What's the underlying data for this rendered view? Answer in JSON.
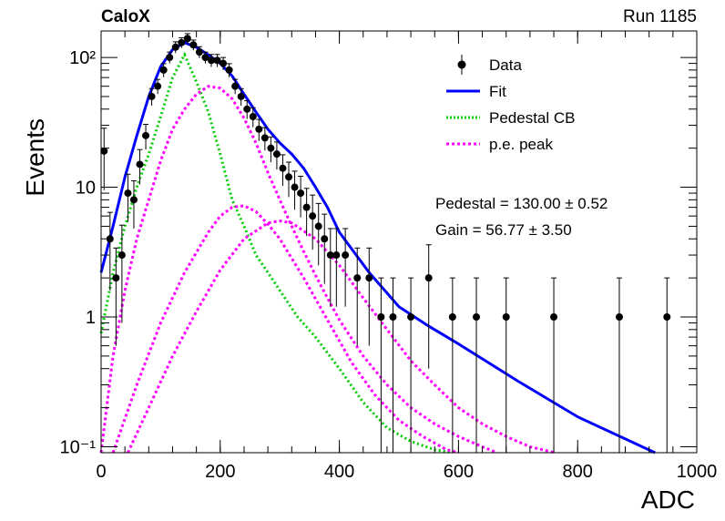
{
  "header": {
    "experiment": "CaloX",
    "run": "Run 1185"
  },
  "colors": {
    "data": "#000000",
    "fit": "#0000ff",
    "pedestal": "#00cc00",
    "pe_peak": "#ff00ff",
    "frame": "#000000"
  },
  "chart_data": {
    "type": "scatter",
    "title": "",
    "xlabel": "ADC",
    "ylabel": "Events",
    "xlim": [
      0,
      1000
    ],
    "ylim": [
      0.09,
      160
    ],
    "yscale": "log",
    "grid": false,
    "legend_position": "top-right",
    "xticks": [
      0,
      200,
      400,
      600,
      800,
      1000
    ],
    "xtick_labels": [
      "0",
      "200",
      "400",
      "600",
      "800",
      "1000"
    ],
    "yticks": [
      0.1,
      1,
      10,
      100
    ],
    "ytick_labels": [
      "10⁻¹",
      "1",
      "10",
      "10²"
    ],
    "legend": [
      "Data",
      "Fit",
      "Pedestal CB",
      "p.e. peak"
    ],
    "annotations": [
      "Pedestal = 130.00 ± 0.52",
      "Gain = 56.77 ± 3.50"
    ],
    "series": [
      {
        "name": "Data",
        "style": "markers",
        "x": [
          5,
          15,
          25,
          35,
          45,
          55,
          65,
          75,
          85,
          95,
          105,
          115,
          125,
          135,
          145,
          155,
          165,
          175,
          185,
          195,
          205,
          215,
          225,
          235,
          245,
          255,
          265,
          275,
          285,
          295,
          305,
          315,
          325,
          335,
          345,
          355,
          365,
          375,
          385,
          395,
          410,
          430,
          450,
          470,
          490,
          520,
          550,
          590,
          630,
          680,
          760,
          870,
          950
        ],
        "y": [
          19,
          4,
          2,
          3,
          9,
          8,
          15,
          25,
          50,
          60,
          80,
          100,
          120,
          130,
          140,
          125,
          110,
          100,
          95,
          95,
          90,
          80,
          60,
          50,
          40,
          35,
          28,
          24,
          20,
          18,
          14,
          12,
          10,
          9,
          7,
          6,
          5,
          4,
          3,
          3,
          3,
          2,
          2,
          1,
          1,
          1,
          2,
          1,
          1,
          1,
          1,
          1,
          1
        ],
        "err": [
          0.5,
          0.6,
          0.7,
          0.7,
          0.4,
          0.4,
          0.3,
          0.22,
          0.15,
          0.13,
          0.12,
          0.1,
          0.1,
          0.09,
          0.09,
          0.09,
          0.1,
          0.1,
          0.11,
          0.11,
          0.11,
          0.12,
          0.13,
          0.15,
          0.16,
          0.17,
          0.19,
          0.2,
          0.22,
          0.24,
          0.27,
          0.3,
          0.33,
          0.35,
          0.4,
          0.45,
          0.5,
          0.55,
          0.6,
          0.6,
          0.6,
          0.7,
          0.7,
          1.0,
          1.0,
          1.0,
          0.8,
          1.0,
          1.0,
          1.0,
          1.0,
          1.0,
          1.0
        ]
      },
      {
        "name": "Fit",
        "style": "line",
        "x": [
          0,
          20,
          40,
          60,
          80,
          100,
          120,
          140,
          160,
          180,
          200,
          220,
          240,
          260,
          280,
          300,
          320,
          340,
          360,
          380,
          400,
          450,
          500,
          550,
          600,
          700,
          800,
          930
        ],
        "y": [
          2.2,
          5,
          12,
          25,
          50,
          85,
          115,
          130,
          120,
          105,
          90,
          72,
          52,
          38,
          28,
          22,
          18,
          14,
          10,
          7,
          4.5,
          2.2,
          1.2,
          0.85,
          0.62,
          0.32,
          0.17,
          0.09
        ]
      },
      {
        "name": "Pedestal CB",
        "style": "dotted",
        "x": [
          0,
          20,
          40,
          60,
          80,
          100,
          120,
          140,
          160,
          180,
          200,
          220,
          240,
          260,
          280,
          300,
          330,
          360,
          400,
          440,
          480,
          520,
          560,
          590
        ],
        "y": [
          0.75,
          2.2,
          5,
          10,
          18,
          35,
          70,
          105,
          65,
          38,
          18,
          8,
          5,
          3,
          2.2,
          1.6,
          1,
          0.7,
          0.4,
          0.22,
          0.14,
          0.11,
          0.095,
          0.09
        ]
      },
      {
        "name": "p.e. peak 1",
        "style": "dotted",
        "x": [
          0,
          20,
          40,
          60,
          80,
          100,
          120,
          140,
          160,
          180,
          200,
          220,
          240,
          260,
          280,
          300,
          320,
          340,
          360,
          380,
          400,
          440,
          480,
          520,
          560,
          600,
          640,
          665
        ],
        "y": [
          0.08,
          0.5,
          1.6,
          4,
          8,
          16,
          28,
          40,
          52,
          60,
          58,
          48,
          34,
          22,
          13,
          8,
          5,
          3.2,
          2.1,
          1.4,
          0.95,
          0.5,
          0.3,
          0.2,
          0.15,
          0.12,
          0.1,
          0.09
        ]
      },
      {
        "name": "p.e. peak 2",
        "style": "dotted",
        "x": [
          20,
          60,
          100,
          140,
          180,
          200,
          220,
          240,
          260,
          280,
          300,
          340,
          380,
          420,
          460,
          500,
          540,
          580,
          600
        ],
        "y": [
          0.09,
          0.3,
          0.9,
          2.2,
          4.5,
          6,
          7,
          7.2,
          6.5,
          5.2,
          4,
          2,
          0.95,
          0.45,
          0.25,
          0.16,
          0.12,
          0.095,
          0.09
        ]
      },
      {
        "name": "p.e. peak 3",
        "style": "dotted",
        "x": [
          45,
          80,
          120,
          160,
          200,
          240,
          280,
          300,
          320,
          360,
          400,
          440,
          480,
          520,
          560,
          600,
          640,
          680,
          720,
          762
        ],
        "y": [
          0.09,
          0.2,
          0.5,
          1.1,
          2.3,
          4,
          5.3,
          5.5,
          5.3,
          4,
          2.5,
          1.4,
          0.8,
          0.46,
          0.3,
          0.2,
          0.15,
          0.12,
          0.1,
          0.09
        ]
      }
    ]
  }
}
